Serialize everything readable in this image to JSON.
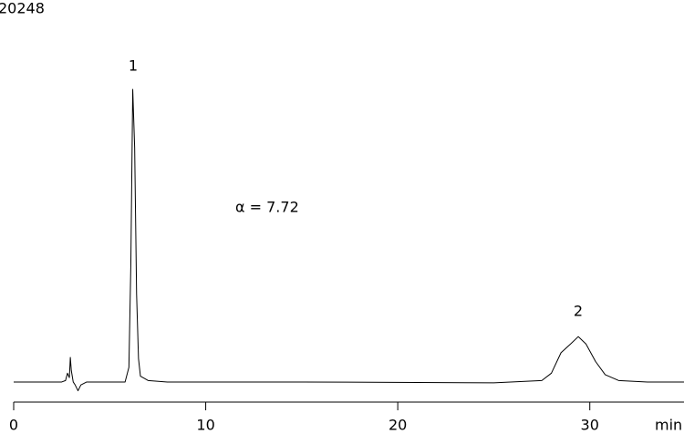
{
  "chart_data": {
    "type": "line",
    "title": "20248",
    "x_label": "min",
    "annotations": [
      "1",
      "2",
      "α = 7.72"
    ],
    "x": [
      0,
      2.5,
      2.7,
      2.8,
      2.9,
      2.95,
      3.0,
      3.1,
      3.2,
      3.35,
      3.5,
      3.8,
      5.8,
      6.0,
      6.1,
      6.2,
      6.3,
      6.4,
      6.5,
      6.6,
      7,
      8,
      15,
      25,
      27.5,
      28,
      28.5,
      29,
      29.4,
      29.8,
      30.3,
      30.8,
      31.5,
      33,
      35
    ],
    "series": [
      {
        "color": "#000000",
        "values": [
          0,
          0,
          0.5,
          3,
          1.5,
          8.4,
          4,
          0,
          -1,
          -3,
          -1,
          0,
          0,
          5,
          40,
          100,
          80,
          30,
          8,
          2,
          0.5,
          0,
          0,
          -0.3,
          0.5,
          3,
          10,
          13,
          15.5,
          13,
          7,
          2.5,
          0.5,
          0,
          0
        ]
      }
    ],
    "xlim": [
      0,
      35
    ],
    "xticks": [
      0,
      10,
      20,
      30
    ],
    "ylim": [
      -5,
      100
    ]
  }
}
